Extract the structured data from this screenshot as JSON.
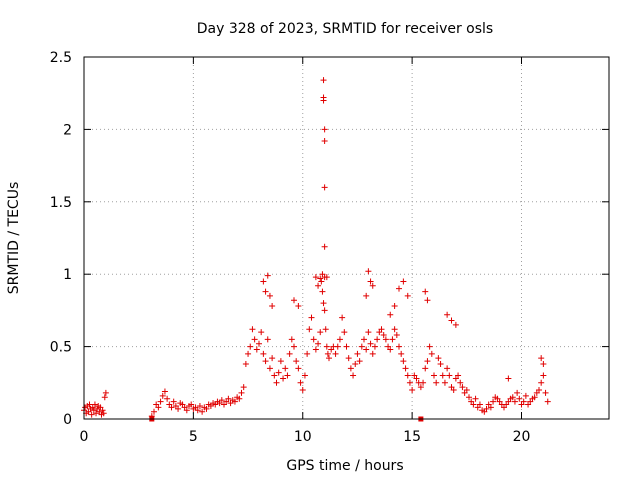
{
  "chart_data": {
    "type": "scatter",
    "title": "Day 328 of 2023, SRMTID for receiver osls",
    "xlabel": "GPS time / hours",
    "ylabel": "SRMTID / TECUs",
    "xlim": [
      0,
      24
    ],
    "ylim": [
      0,
      2.5
    ],
    "xticks": [
      0,
      5,
      10,
      15,
      20
    ],
    "xtick_labels": [
      "0",
      "5",
      "10",
      "15",
      "20"
    ],
    "yticks": [
      0,
      0.5,
      1,
      1.5,
      2,
      2.5
    ],
    "ytick_labels": [
      "0",
      "0.5",
      "1",
      "1.5",
      "2",
      "2.5"
    ],
    "grid": true,
    "marker": "+",
    "series": [
      {
        "name": "SRMTID",
        "color": "#e00000",
        "x": [
          0.0,
          0.05,
          0.1,
          0.15,
          0.2,
          0.25,
          0.3,
          0.35,
          0.4,
          0.45,
          0.5,
          0.55,
          0.6,
          0.65,
          0.7,
          0.75,
          0.8,
          0.85,
          0.9,
          0.95,
          1.0,
          3.1,
          3.2,
          3.3,
          3.4,
          3.5,
          3.6,
          3.7,
          3.8,
          3.9,
          4.0,
          4.1,
          4.2,
          4.3,
          4.4,
          4.5,
          4.6,
          4.7,
          4.8,
          4.9,
          5.0,
          5.1,
          5.2,
          5.3,
          5.4,
          5.5,
          5.6,
          5.7,
          5.8,
          5.9,
          6.0,
          6.1,
          6.2,
          6.3,
          6.4,
          6.5,
          6.6,
          6.7,
          6.8,
          6.9,
          7.0,
          7.1,
          7.2,
          7.3,
          7.4,
          7.5,
          7.6,
          7.7,
          7.8,
          7.9,
          8.0,
          8.1,
          8.2,
          8.3,
          8.4,
          8.5,
          8.6,
          8.7,
          8.8,
          8.9,
          9.0,
          9.1,
          9.2,
          9.3,
          9.4,
          9.5,
          9.6,
          9.7,
          9.8,
          9.9,
          10.0,
          10.1,
          10.2,
          10.3,
          10.4,
          10.5,
          10.6,
          10.7,
          10.8,
          10.85,
          10.9,
          10.95,
          11.0,
          11.05,
          11.1,
          11.15,
          11.2,
          11.3,
          11.4,
          11.5,
          11.6,
          11.7,
          11.8,
          11.9,
          12.0,
          12.1,
          12.2,
          12.3,
          12.4,
          12.5,
          12.6,
          12.7,
          12.8,
          12.9,
          13.0,
          13.1,
          13.2,
          13.3,
          13.4,
          13.5,
          13.6,
          13.7,
          13.8,
          13.9,
          14.0,
          14.1,
          14.2,
          14.3,
          14.4,
          14.5,
          14.6,
          14.7,
          14.8,
          14.9,
          15.0,
          15.1,
          15.2,
          15.3,
          15.4,
          15.5,
          15.6,
          15.7,
          15.8,
          15.9,
          16.0,
          16.1,
          16.2,
          16.3,
          16.4,
          16.5,
          16.6,
          16.7,
          16.8,
          16.9,
          17.0,
          17.1,
          17.2,
          17.3,
          17.4,
          17.5,
          17.6,
          17.7,
          17.8,
          17.9,
          18.0,
          18.1,
          18.2,
          18.3,
          18.4,
          18.5,
          18.6,
          18.7,
          18.8,
          18.9,
          19.0,
          19.1,
          19.2,
          19.3,
          19.4,
          19.5,
          19.6,
          19.7,
          19.8,
          19.9,
          20.0,
          20.1,
          20.2,
          20.3,
          20.4,
          20.5,
          20.6,
          20.7,
          20.8,
          20.9,
          21.0,
          21.1,
          21.2,
          10.95,
          10.95,
          10.95,
          11.0,
          11.0,
          11.0,
          11.0,
          11.0,
          8.2,
          8.3,
          8.4,
          8.5,
          8.6,
          9.6,
          9.8,
          10.6,
          10.7,
          10.8,
          10.9,
          11.1,
          12.9,
          13.0,
          13.1,
          13.2,
          14.0,
          14.2,
          14.4,
          14.6,
          14.8,
          15.6,
          15.7,
          16.6,
          16.8,
          17.0,
          19.4,
          20.9,
          21.0
        ],
        "y": [
          0.06,
          0.08,
          0.04,
          0.09,
          0.05,
          0.1,
          0.07,
          0.03,
          0.08,
          0.06,
          0.1,
          0.04,
          0.07,
          0.09,
          0.05,
          0.08,
          0.03,
          0.06,
          0.04,
          0.15,
          0.18,
          0.02,
          0.05,
          0.1,
          0.08,
          0.12,
          0.16,
          0.19,
          0.14,
          0.1,
          0.08,
          0.12,
          0.09,
          0.07,
          0.11,
          0.1,
          0.08,
          0.06,
          0.09,
          0.1,
          0.07,
          0.08,
          0.06,
          0.09,
          0.05,
          0.08,
          0.07,
          0.1,
          0.09,
          0.11,
          0.1,
          0.12,
          0.11,
          0.13,
          0.1,
          0.12,
          0.14,
          0.11,
          0.13,
          0.12,
          0.15,
          0.14,
          0.18,
          0.22,
          0.38,
          0.45,
          0.5,
          0.62,
          0.55,
          0.48,
          0.52,
          0.6,
          0.45,
          0.4,
          0.55,
          0.35,
          0.42,
          0.3,
          0.25,
          0.32,
          0.4,
          0.28,
          0.35,
          0.3,
          0.45,
          0.55,
          0.5,
          0.4,
          0.35,
          0.25,
          0.2,
          0.3,
          0.45,
          0.62,
          0.7,
          0.55,
          0.48,
          0.52,
          0.6,
          0.95,
          0.88,
          0.8,
          0.75,
          0.62,
          0.5,
          0.45,
          0.42,
          0.48,
          0.5,
          0.45,
          0.5,
          0.55,
          0.7,
          0.6,
          0.5,
          0.42,
          0.35,
          0.3,
          0.38,
          0.45,
          0.4,
          0.5,
          0.55,
          0.48,
          0.6,
          0.52,
          0.45,
          0.5,
          0.55,
          0.6,
          0.62,
          0.58,
          0.55,
          0.5,
          0.48,
          0.55,
          0.62,
          0.58,
          0.5,
          0.45,
          0.4,
          0.35,
          0.3,
          0.25,
          0.2,
          0.3,
          0.28,
          0.25,
          0.22,
          0.25,
          0.35,
          0.4,
          0.5,
          0.45,
          0.3,
          0.25,
          0.42,
          0.38,
          0.3,
          0.25,
          0.35,
          0.3,
          0.22,
          0.2,
          0.28,
          0.3,
          0.25,
          0.22,
          0.18,
          0.2,
          0.15,
          0.12,
          0.1,
          0.14,
          0.08,
          0.1,
          0.06,
          0.05,
          0.07,
          0.1,
          0.08,
          0.12,
          0.15,
          0.14,
          0.12,
          0.1,
          0.08,
          0.1,
          0.12,
          0.14,
          0.15,
          0.12,
          0.18,
          0.14,
          0.1,
          0.12,
          0.16,
          0.1,
          0.12,
          0.14,
          0.15,
          0.18,
          0.2,
          0.25,
          0.3,
          0.18,
          0.12,
          2.34,
          2.22,
          2.2,
          2.0,
          1.92,
          1.6,
          1.19,
          0.98,
          0.95,
          0.88,
          0.99,
          0.85,
          0.78,
          0.82,
          0.78,
          0.98,
          0.92,
          0.97,
          1.0,
          0.98,
          0.85,
          1.02,
          0.95,
          0.92,
          0.72,
          0.78,
          0.9,
          0.95,
          0.85,
          0.88,
          0.82,
          0.72,
          0.68,
          0.65,
          0.28,
          0.42,
          0.38
        ]
      }
    ],
    "missing_marker_x": [
      3.1,
      15.4
    ]
  }
}
